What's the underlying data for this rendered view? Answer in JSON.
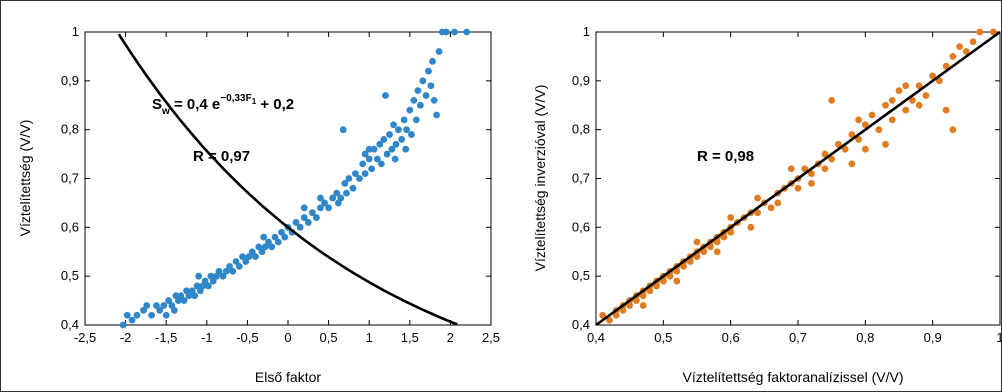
{
  "chart_data": [
    {
      "type": "scatter",
      "xlabel": "Első faktor",
      "ylabel": "Víztelítettség (V/V)",
      "xlim": [
        -2.5,
        2.5
      ],
      "ylim": [
        0.4,
        1.0
      ],
      "xticks": [
        "-2,5",
        "-2",
        "-1,5",
        "-1",
        "-0,5",
        "0",
        "0,5",
        "1",
        "1,5",
        "2",
        "2,5"
      ],
      "yticks": [
        "0,4",
        "0,5",
        "0,6",
        "0,7",
        "0,8",
        "0,9",
        "1"
      ],
      "marker_color": "#2f86c8",
      "grid": false,
      "annotations": {
        "eq_S": "S",
        "eq_w": "w",
        "eq_mid": " = 0,4 e",
        "eq_exp": "−0,33F",
        "eq_exp_sub": "1",
        "eq_tail": " + 0,2",
        "r": "R = 0,97"
      },
      "fit": {
        "type": "exponential",
        "a": 0.4,
        "b": -0.33,
        "c": 0.2
      },
      "points": [
        [
          -2.03,
          0.4
        ],
        [
          -1.98,
          0.42
        ],
        [
          -1.92,
          0.41
        ],
        [
          -1.86,
          0.42
        ],
        [
          -1.78,
          0.43
        ],
        [
          -1.74,
          0.44
        ],
        [
          -1.68,
          0.42
        ],
        [
          -1.62,
          0.44
        ],
        [
          -1.58,
          0.43
        ],
        [
          -1.53,
          0.44
        ],
        [
          -1.5,
          0.42
        ],
        [
          -1.47,
          0.45
        ],
        [
          -1.43,
          0.44
        ],
        [
          -1.4,
          0.43
        ],
        [
          -1.38,
          0.46
        ],
        [
          -1.35,
          0.45
        ],
        [
          -1.32,
          0.46
        ],
        [
          -1.28,
          0.45
        ],
        [
          -1.25,
          0.47
        ],
        [
          -1.22,
          0.46
        ],
        [
          -1.18,
          0.47
        ],
        [
          -1.15,
          0.46
        ],
        [
          -1.12,
          0.48
        ],
        [
          -1.08,
          0.47
        ],
        [
          -1.05,
          0.48
        ],
        [
          -1.02,
          0.49
        ],
        [
          -0.98,
          0.48
        ],
        [
          -0.95,
          0.5
        ],
        [
          -0.92,
          0.49
        ],
        [
          -0.88,
          0.5
        ],
        [
          -0.85,
          0.51
        ],
        [
          -0.8,
          0.5
        ],
        [
          -0.76,
          0.51
        ],
        [
          -0.72,
          0.52
        ],
        [
          -0.68,
          0.51
        ],
        [
          -0.64,
          0.53
        ],
        [
          -0.6,
          0.52
        ],
        [
          -0.56,
          0.54
        ],
        [
          -0.52,
          0.53
        ],
        [
          -0.48,
          0.54
        ],
        [
          -0.44,
          0.55
        ],
        [
          -0.4,
          0.54
        ],
        [
          -0.36,
          0.56
        ],
        [
          -0.32,
          0.55
        ],
        [
          -0.28,
          0.56
        ],
        [
          -0.24,
          0.57
        ],
        [
          -0.2,
          0.56
        ],
        [
          -0.16,
          0.58
        ],
        [
          -0.12,
          0.57
        ],
        [
          -0.08,
          0.59
        ],
        [
          -0.04,
          0.58
        ],
        [
          0.0,
          0.6
        ],
        [
          0.05,
          0.59
        ],
        [
          0.1,
          0.61
        ],
        [
          0.15,
          0.6
        ],
        [
          0.2,
          0.62
        ],
        [
          0.25,
          0.61
        ],
        [
          0.3,
          0.63
        ],
        [
          0.35,
          0.62
        ],
        [
          0.4,
          0.64
        ],
        [
          0.45,
          0.65
        ],
        [
          0.5,
          0.64
        ],
        [
          0.55,
          0.66
        ],
        [
          0.6,
          0.67
        ],
        [
          0.65,
          0.66
        ],
        [
          0.7,
          0.69
        ],
        [
          0.72,
          0.67
        ],
        [
          0.75,
          0.7
        ],
        [
          0.8,
          0.68
        ],
        [
          0.83,
          0.71
        ],
        [
          0.88,
          0.7
        ],
        [
          0.92,
          0.73
        ],
        [
          0.95,
          0.71
        ],
        [
          1.0,
          0.74
        ],
        [
          1.03,
          0.72
        ],
        [
          1.06,
          0.76
        ],
        [
          1.1,
          0.74
        ],
        [
          1.13,
          0.77
        ],
        [
          1.15,
          0.73
        ],
        [
          1.18,
          0.78
        ],
        [
          1.22,
          0.75
        ],
        [
          1.25,
          0.79
        ],
        [
          1.28,
          0.76
        ],
        [
          1.3,
          0.81
        ],
        [
          1.33,
          0.77
        ],
        [
          1.36,
          0.8
        ],
        [
          1.4,
          0.78
        ],
        [
          1.43,
          0.82
        ],
        [
          1.46,
          0.8
        ],
        [
          1.5,
          0.84
        ],
        [
          1.52,
          0.79
        ],
        [
          1.55,
          0.86
        ],
        [
          1.58,
          0.82
        ],
        [
          1.6,
          0.88
        ],
        [
          1.63,
          0.85
        ],
        [
          1.66,
          0.9
        ],
        [
          1.7,
          0.87
        ],
        [
          1.73,
          0.92
        ],
        [
          1.76,
          0.89
        ],
        [
          1.78,
          0.94
        ],
        [
          1.8,
          0.86
        ],
        [
          1.83,
          0.83
        ],
        [
          1.86,
          0.96
        ],
        [
          1.9,
          1.0
        ],
        [
          1.95,
          1.0
        ],
        [
          2.05,
          1.0
        ],
        [
          2.2,
          1.0
        ],
        [
          1.0,
          0.76
        ],
        [
          0.95,
          0.75
        ],
        [
          0.62,
          0.65
        ],
        [
          0.4,
          0.66
        ],
        [
          0.2,
          0.64
        ],
        [
          0.68,
          0.8
        ],
        [
          1.2,
          0.87
        ],
        [
          1.32,
          0.74
        ],
        [
          1.45,
          0.76
        ],
        [
          -1.1,
          0.5
        ],
        [
          -0.3,
          0.58
        ]
      ]
    },
    {
      "type": "scatter",
      "xlabel": "Víztelítettség faktoranalízissel (V/V)",
      "ylabel": "Víztelítettség inverzióval (V/V)",
      "xlim": [
        0.4,
        1.0
      ],
      "ylim": [
        0.4,
        1.0
      ],
      "xticks": [
        "0,4",
        "0,5",
        "0,6",
        "0,7",
        "0,8",
        "0,9",
        "1"
      ],
      "yticks": [
        "0,4",
        "0,5",
        "0,6",
        "0,7",
        "0,8",
        "0,9",
        "1"
      ],
      "marker_color": "#e07b1f",
      "grid": false,
      "annotations": {
        "r": "R = 0,98"
      },
      "fit": {
        "type": "linear",
        "slope": 1.0,
        "intercept": 0.0
      },
      "points": [
        [
          0.41,
          0.42
        ],
        [
          0.42,
          0.41
        ],
        [
          0.43,
          0.43
        ],
        [
          0.43,
          0.42
        ],
        [
          0.44,
          0.44
        ],
        [
          0.44,
          0.43
        ],
        [
          0.45,
          0.45
        ],
        [
          0.45,
          0.44
        ],
        [
          0.46,
          0.46
        ],
        [
          0.46,
          0.45
        ],
        [
          0.47,
          0.47
        ],
        [
          0.47,
          0.46
        ],
        [
          0.48,
          0.48
        ],
        [
          0.48,
          0.47
        ],
        [
          0.49,
          0.49
        ],
        [
          0.49,
          0.48
        ],
        [
          0.5,
          0.5
        ],
        [
          0.5,
          0.49
        ],
        [
          0.51,
          0.51
        ],
        [
          0.51,
          0.5
        ],
        [
          0.52,
          0.52
        ],
        [
          0.52,
          0.51
        ],
        [
          0.53,
          0.53
        ],
        [
          0.53,
          0.52
        ],
        [
          0.54,
          0.54
        ],
        [
          0.54,
          0.53
        ],
        [
          0.55,
          0.55
        ],
        [
          0.55,
          0.54
        ],
        [
          0.56,
          0.56
        ],
        [
          0.56,
          0.55
        ],
        [
          0.57,
          0.57
        ],
        [
          0.57,
          0.56
        ],
        [
          0.58,
          0.58
        ],
        [
          0.58,
          0.57
        ],
        [
          0.59,
          0.59
        ],
        [
          0.59,
          0.58
        ],
        [
          0.6,
          0.6
        ],
        [
          0.6,
          0.59
        ],
        [
          0.61,
          0.61
        ],
        [
          0.62,
          0.62
        ],
        [
          0.63,
          0.63
        ],
        [
          0.64,
          0.63
        ],
        [
          0.65,
          0.65
        ],
        [
          0.66,
          0.64
        ],
        [
          0.67,
          0.67
        ],
        [
          0.68,
          0.68
        ],
        [
          0.69,
          0.69
        ],
        [
          0.7,
          0.7
        ],
        [
          0.7,
          0.68
        ],
        [
          0.71,
          0.72
        ],
        [
          0.72,
          0.71
        ],
        [
          0.73,
          0.73
        ],
        [
          0.74,
          0.75
        ],
        [
          0.75,
          0.74
        ],
        [
          0.75,
          0.86
        ],
        [
          0.76,
          0.77
        ],
        [
          0.77,
          0.76
        ],
        [
          0.78,
          0.79
        ],
        [
          0.79,
          0.78
        ],
        [
          0.8,
          0.81
        ],
        [
          0.8,
          0.76
        ],
        [
          0.81,
          0.83
        ],
        [
          0.82,
          0.8
        ],
        [
          0.83,
          0.85
        ],
        [
          0.83,
          0.77
        ],
        [
          0.84,
          0.82
        ],
        [
          0.85,
          0.88
        ],
        [
          0.86,
          0.84
        ],
        [
          0.87,
          0.86
        ],
        [
          0.88,
          0.89
        ],
        [
          0.89,
          0.87
        ],
        [
          0.9,
          0.91
        ],
        [
          0.91,
          0.9
        ],
        [
          0.92,
          0.93
        ],
        [
          0.93,
          0.95
        ],
        [
          0.93,
          0.8
        ],
        [
          0.94,
          0.97
        ],
        [
          0.95,
          0.96
        ],
        [
          0.96,
          0.98
        ],
        [
          0.97,
          1.0
        ],
        [
          0.99,
          1.0
        ],
        [
          0.47,
          0.44
        ],
        [
          0.52,
          0.49
        ],
        [
          0.58,
          0.55
        ],
        [
          0.63,
          0.6
        ],
        [
          0.67,
          0.65
        ],
        [
          0.72,
          0.69
        ],
        [
          0.78,
          0.73
        ],
        [
          0.86,
          0.89
        ],
        [
          0.92,
          0.84
        ],
        [
          0.64,
          0.66
        ],
        [
          0.69,
          0.72
        ],
        [
          0.74,
          0.72
        ],
        [
          0.79,
          0.82
        ],
        [
          0.84,
          0.86
        ],
        [
          0.88,
          0.85
        ],
        [
          0.55,
          0.57
        ],
        [
          0.6,
          0.62
        ]
      ]
    }
  ]
}
